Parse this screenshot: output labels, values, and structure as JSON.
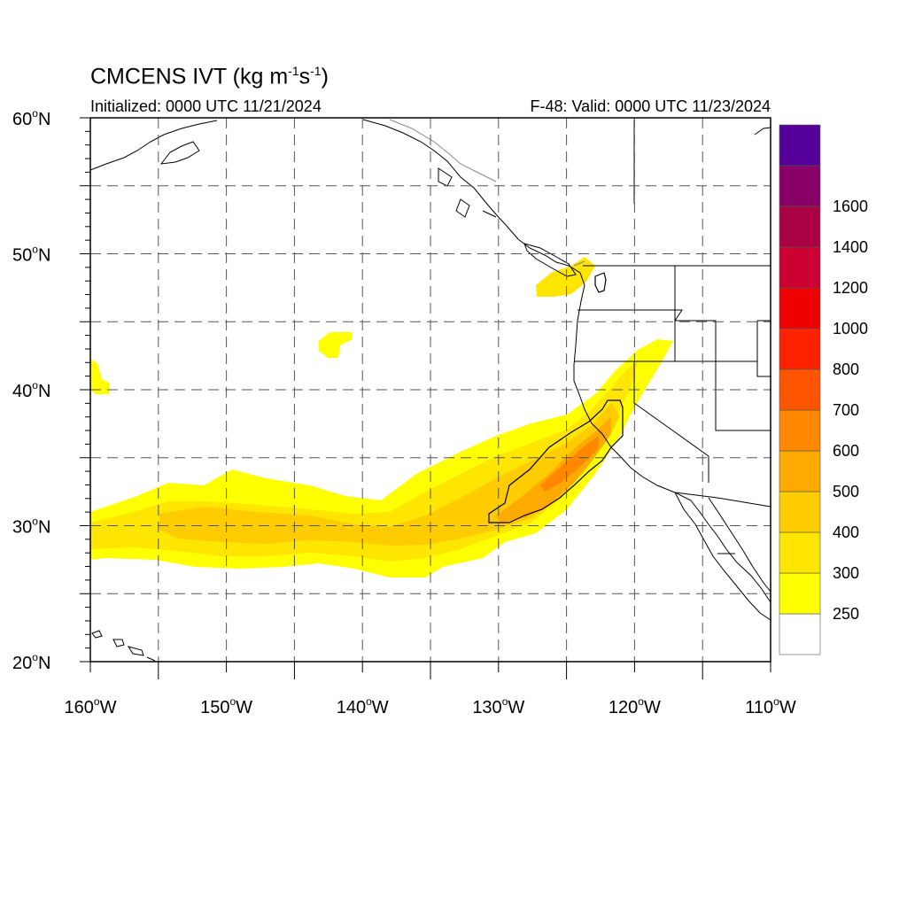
{
  "title": {
    "text": "CMCENS IVT (kg m",
    "exp1": "-1",
    "mid": "s",
    "exp2": "-1",
    "end": ")"
  },
  "init_text": "Initialized: 0000 UTC 11/21/2024",
  "valid_text": "F-48: Valid: 0000 UTC 11/23/2024",
  "map": {
    "lon_range": [
      -160,
      -110
    ],
    "lat_range": [
      20,
      60
    ],
    "grid": "dashed every 5 degrees",
    "lat_labels": [
      {
        "lat": 60,
        "deg": "60",
        "hemi": "N"
      },
      {
        "lat": 50,
        "deg": "50",
        "hemi": "N"
      },
      {
        "lat": 40,
        "deg": "40",
        "hemi": "N"
      },
      {
        "lat": 30,
        "deg": "30",
        "hemi": "N"
      },
      {
        "lat": 20,
        "deg": "20",
        "hemi": "N"
      }
    ],
    "lon_labels": [
      {
        "lon": -160,
        "deg": "160",
        "hemi": "W"
      },
      {
        "lon": -150,
        "deg": "150",
        "hemi": "W"
      },
      {
        "lon": -140,
        "deg": "140",
        "hemi": "W"
      },
      {
        "lon": -130,
        "deg": "130",
        "hemi": "W"
      },
      {
        "lon": -120,
        "deg": "120",
        "hemi": "W"
      },
      {
        "lon": -110,
        "deg": "110",
        "hemi": "W"
      }
    ]
  },
  "colorbar": {
    "colors": [
      "#ffffff",
      "#ffff00",
      "#ffe600",
      "#ffcc00",
      "#ffaa00",
      "#ff8800",
      "#ff5500",
      "#ff2200",
      "#ee0000",
      "#cc0033",
      "#aa0044",
      "#880066",
      "#550099"
    ],
    "labels": [
      "250",
      "300",
      "400",
      "500",
      "600",
      "700",
      "800",
      "1000",
      "1200",
      "1400",
      "1600"
    ]
  }
}
